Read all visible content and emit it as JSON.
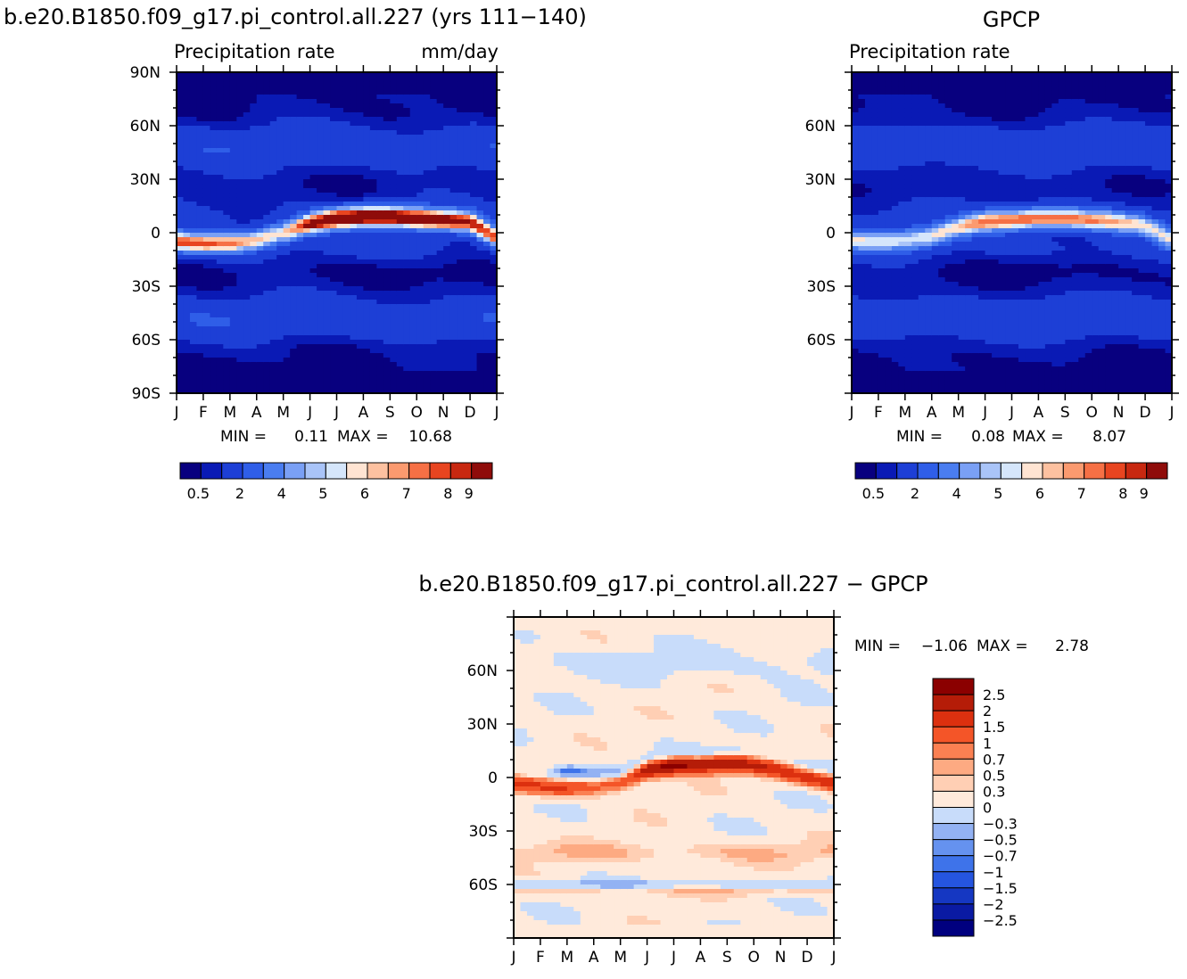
{
  "palettes": {
    "abs": [
      "#08007f",
      "#0a1ab5",
      "#1d3fd6",
      "#2f5ee8",
      "#4a7df0",
      "#7aa0f5",
      "#a9c4f8",
      "#d5e6fb",
      "#ffe4d2",
      "#fdc1a0",
      "#fb9a6f",
      "#f67045",
      "#e84520",
      "#c82810",
      "#8f0c0a"
    ],
    "diff": [
      "#00007f",
      "#0a1aa3",
      "#1537c2",
      "#2555e0",
      "#3e73ea",
      "#6592ef",
      "#93b2f3",
      "#c8dcfa",
      "#ffeadb",
      "#ffcfb4",
      "#fdaa82",
      "#fb8052",
      "#f45528",
      "#dc300f",
      "#b51c08",
      "#8b0000"
    ]
  },
  "panels": {
    "model": {
      "run_title": "b.e20.B1850.f09_g17.pi_control.all.227 (yrs 111−140)",
      "field": "Precipitation rate",
      "units": "mm/day",
      "min_label": "MIN =",
      "min_value": "0.11",
      "max_label": "MAX =",
      "max_value": "10.68"
    },
    "obs": {
      "title": "GPCP",
      "field": "Precipitation rate",
      "min_label": "MIN =",
      "min_value": "0.08",
      "max_label": "MAX =",
      "max_value": "8.07"
    },
    "diff": {
      "title": "b.e20.B1850.f09_g17.pi_control.all.227 − GPCP",
      "min_label": "MIN =",
      "min_value": "−1.06",
      "max_label": "MAX =",
      "max_value": "2.78"
    }
  },
  "chart_data": [
    {
      "type": "heatmap",
      "title": "b.e20.B1850.f09_g17.pi_control.all.227 (yrs 111−140)",
      "subtitle": "Precipitation rate",
      "units": "mm/day",
      "x_ticks": [
        "J",
        "F",
        "M",
        "A",
        "M",
        "J",
        "J",
        "A",
        "S",
        "O",
        "N",
        "D",
        "J"
      ],
      "y_ticks": [
        "90N",
        "60N",
        "30N",
        "0",
        "30S",
        "60S",
        "90S"
      ],
      "ylim": [
        -90,
        90
      ],
      "colorbar_labels": [
        "0.5",
        "2",
        "4",
        "5",
        "6",
        "7",
        "8",
        "9"
      ],
      "min": 0.11,
      "max": 10.68,
      "itcz_lat_by_month": [
        -5,
        -6,
        -6,
        -4,
        0,
        5,
        8,
        9,
        9,
        8,
        7,
        6,
        -3
      ],
      "itcz_peak_by_month": [
        8.2,
        7.8,
        7.6,
        6.8,
        6.6,
        9.5,
        10.4,
        10.6,
        10.6,
        10.2,
        9.6,
        8.8,
        8.2
      ]
    },
    {
      "type": "heatmap",
      "title": "GPCP",
      "subtitle": "Precipitation rate",
      "x_ticks": [
        "J",
        "F",
        "M",
        "A",
        "M",
        "J",
        "J",
        "A",
        "S",
        "O",
        "N",
        "D",
        "J"
      ],
      "y_ticks": [
        "60N",
        "30N",
        "0",
        "30S",
        "60S"
      ],
      "ylim": [
        -90,
        90
      ],
      "colorbar_labels": [
        "0.5",
        "2",
        "4",
        "5",
        "6",
        "7",
        "8",
        "9"
      ],
      "min": 0.08,
      "max": 8.07,
      "itcz_lat_by_month": [
        -4,
        -5,
        -4,
        -2,
        3,
        6,
        7,
        8,
        8,
        7,
        6,
        4,
        -4
      ],
      "itcz_peak_by_month": [
        5.8,
        5.7,
        5.8,
        6.0,
        6.4,
        7.4,
        7.8,
        8.0,
        7.9,
        7.5,
        6.8,
        6.0,
        5.8
      ]
    },
    {
      "type": "heatmap",
      "title": "b.e20.B1850.f09_g17.pi_control.all.227 − GPCP",
      "x_ticks": [
        "J",
        "F",
        "M",
        "A",
        "M",
        "J",
        "J",
        "A",
        "S",
        "O",
        "N",
        "D",
        "J"
      ],
      "y_ticks": [
        "60N",
        "30N",
        "0",
        "30S",
        "60S"
      ],
      "ylim": [
        -90,
        90
      ],
      "colorbar_labels": [
        "2.5",
        "2",
        "1.5",
        "1",
        "0.7",
        "0.5",
        "0.3",
        "0",
        "−0.3",
        "−0.5",
        "−0.7",
        "−1",
        "−1.5",
        "−2",
        "−2.5"
      ],
      "min": -1.06,
      "max": 2.78,
      "itcz_lat_by_month": [
        -3,
        -5,
        -6,
        -5,
        -3,
        4,
        7,
        7,
        8,
        7,
        4,
        0,
        -3
      ],
      "itcz_peak_by_month": [
        1.6,
        1.5,
        1.4,
        1.0,
        1.2,
        2.3,
        2.7,
        2.4,
        2.3,
        2.0,
        1.7,
        1.6,
        1.6
      ]
    }
  ]
}
